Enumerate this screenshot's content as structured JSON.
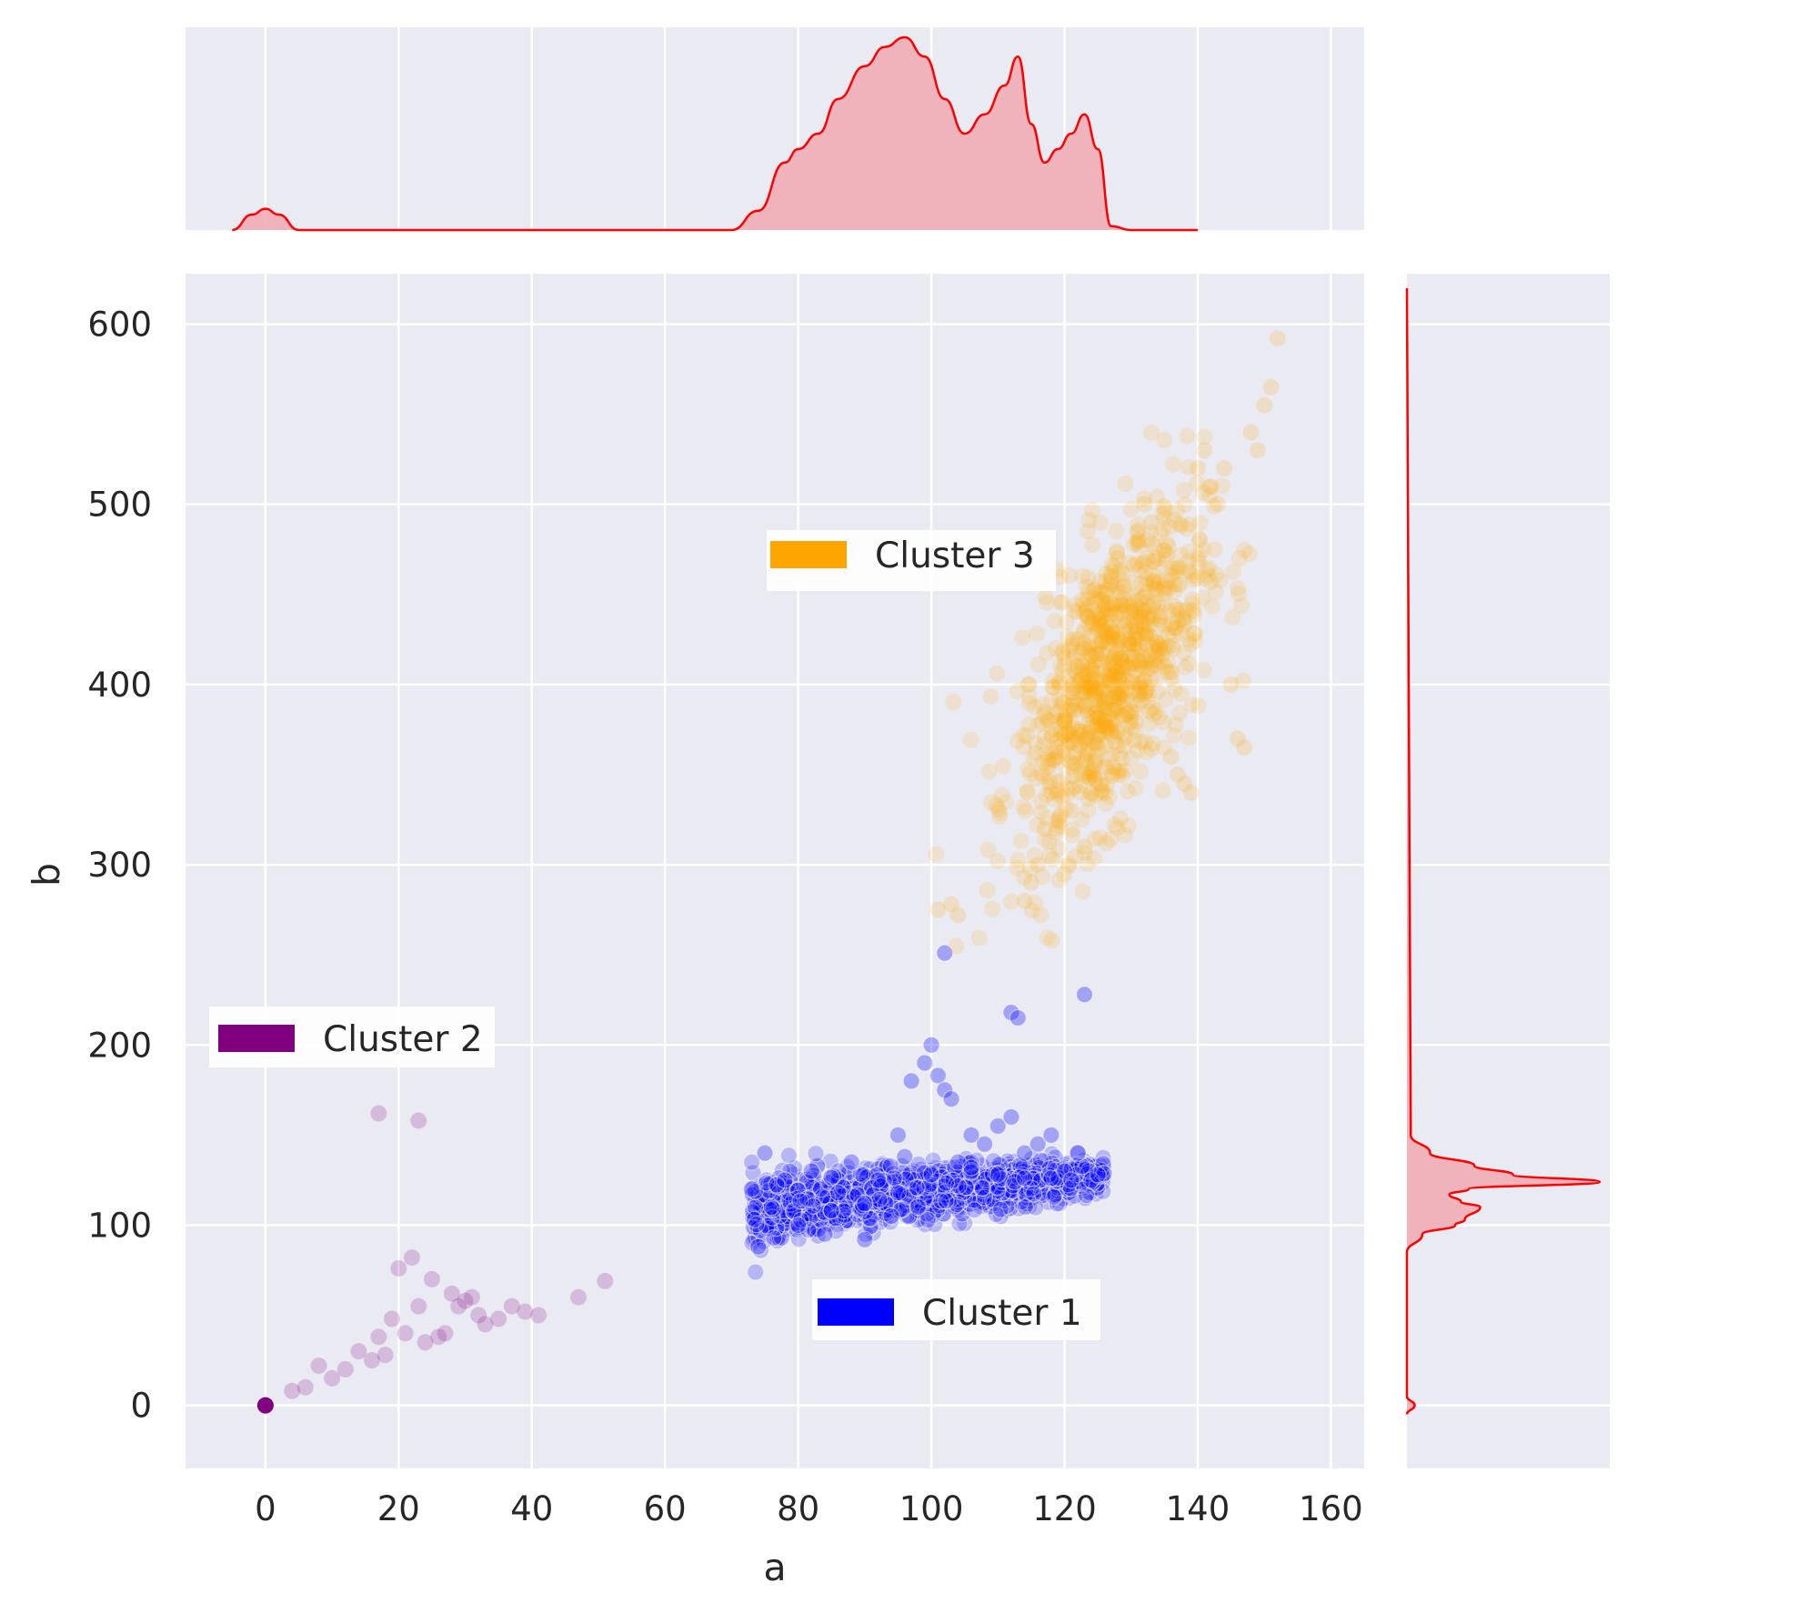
{
  "chart_data": {
    "type": "scatter",
    "title": "",
    "xlabel": "a",
    "ylabel": "b",
    "xlim": [
      -12,
      165
    ],
    "ylim": [
      -35,
      628
    ],
    "x_ticks": [
      0,
      20,
      40,
      60,
      80,
      100,
      120,
      140,
      160
    ],
    "y_ticks": [
      0,
      100,
      200,
      300,
      400,
      500,
      600
    ],
    "grid": true,
    "colors": {
      "background": "#eaeaf2",
      "grid": "#ffffff",
      "kde_line": "#ff0000",
      "kde_fill": "#f0b0b8"
    },
    "series": [
      {
        "name": "Cluster 1",
        "color": "#0000ff",
        "cluster_center": [
          100,
          115
        ],
        "points": [
          [
            73,
            120
          ],
          [
            74,
            88
          ],
          [
            75,
            140
          ],
          [
            76,
            110
          ],
          [
            78,
            125
          ],
          [
            80,
            100
          ],
          [
            82,
            130
          ],
          [
            84,
            95
          ],
          [
            86,
            118
          ],
          [
            88,
            135
          ],
          [
            90,
            92
          ],
          [
            92,
            125
          ],
          [
            94,
            105
          ],
          [
            96,
            138
          ],
          [
            98,
            110
          ],
          [
            100,
            128
          ],
          [
            101,
            183
          ],
          [
            102,
            175
          ],
          [
            103,
            170
          ],
          [
            104,
            135
          ],
          [
            106,
            150
          ],
          [
            108,
            145
          ],
          [
            110,
            155
          ],
          [
            112,
            160
          ],
          [
            114,
            140
          ],
          [
            116,
            145
          ],
          [
            118,
            150
          ],
          [
            120,
            130
          ],
          [
            122,
            140
          ],
          [
            124,
            125
          ],
          [
            125,
            128
          ],
          [
            100,
            200
          ],
          [
            102,
            251
          ],
          [
            112,
            218
          ],
          [
            113,
            215
          ],
          [
            123,
            228
          ],
          [
            97,
            180
          ],
          [
            99,
            190
          ],
          [
            95,
            150
          ],
          [
            106,
            132
          ],
          [
            110,
            128
          ],
          [
            114,
            126
          ],
          [
            118,
            126
          ],
          [
            121,
            125
          ],
          [
            85,
            108
          ],
          [
            90,
            112
          ],
          [
            95,
            118
          ]
        ]
      },
      {
        "name": "Cluster 2",
        "color": "#800080",
        "cluster_center": [
          25,
          40
        ],
        "points": [
          [
            0,
            0
          ],
          [
            4,
            8
          ],
          [
            6,
            10
          ],
          [
            8,
            22
          ],
          [
            10,
            15
          ],
          [
            12,
            20
          ],
          [
            14,
            30
          ],
          [
            16,
            25
          ],
          [
            17,
            38
          ],
          [
            17,
            162
          ],
          [
            18,
            28
          ],
          [
            19,
            48
          ],
          [
            20,
            76
          ],
          [
            21,
            40
          ],
          [
            22,
            82
          ],
          [
            23,
            55
          ],
          [
            23,
            158
          ],
          [
            24,
            35
          ],
          [
            25,
            70
          ],
          [
            26,
            38
          ],
          [
            27,
            40
          ],
          [
            28,
            62
          ],
          [
            29,
            55
          ],
          [
            30,
            58
          ],
          [
            31,
            60
          ],
          [
            32,
            50
          ],
          [
            33,
            45
          ],
          [
            35,
            48
          ],
          [
            37,
            55
          ],
          [
            39,
            52
          ],
          [
            41,
            50
          ],
          [
            47,
            60
          ],
          [
            51,
            69
          ]
        ]
      },
      {
        "name": "Cluster 3",
        "color": "#ffa500",
        "cluster_center": [
          127,
          410
        ],
        "points": [
          [
            101,
            275
          ],
          [
            103,
            278
          ],
          [
            104,
            272
          ],
          [
            114,
            280
          ],
          [
            115,
            290
          ],
          [
            116,
            300
          ],
          [
            117,
            320
          ],
          [
            118,
            340
          ],
          [
            119,
            360
          ],
          [
            120,
            380
          ],
          [
            121,
            395
          ],
          [
            122,
            410
          ],
          [
            123,
            420
          ],
          [
            124,
            400
          ],
          [
            125,
            430
          ],
          [
            126,
            445
          ],
          [
            127,
            460
          ],
          [
            128,
            470
          ],
          [
            129,
            455
          ],
          [
            130,
            440
          ],
          [
            131,
            480
          ],
          [
            132,
            500
          ],
          [
            133,
            490
          ],
          [
            134,
            470
          ],
          [
            135,
            420
          ],
          [
            136,
            360
          ],
          [
            137,
            350
          ],
          [
            138,
            345
          ],
          [
            139,
            340
          ],
          [
            140,
            520
          ],
          [
            141,
            530
          ],
          [
            142,
            510
          ],
          [
            143,
            500
          ],
          [
            144,
            520
          ],
          [
            145,
            400
          ],
          [
            146,
            370
          ],
          [
            147,
            365
          ],
          [
            148,
            540
          ],
          [
            149,
            530
          ],
          [
            150,
            555
          ],
          [
            151,
            565
          ],
          [
            152,
            592
          ],
          [
            123,
            310
          ],
          [
            121,
            330
          ],
          [
            119,
            325
          ],
          [
            130,
            385
          ],
          [
            128,
            395
          ],
          [
            126,
            375
          ]
        ]
      }
    ],
    "marginal_x_kde": {
      "x": [
        -5,
        -2,
        0,
        2,
        5,
        70,
        74,
        78,
        80,
        83,
        86,
        90,
        93,
        96,
        99,
        102,
        105,
        108,
        111,
        113,
        115,
        117,
        119,
        121,
        123,
        125,
        127,
        130,
        140
      ],
      "density": [
        0,
        0.08,
        0.11,
        0.08,
        0,
        0,
        0.1,
        0.35,
        0.42,
        0.5,
        0.68,
        0.85,
        0.95,
        1.0,
        0.9,
        0.68,
        0.5,
        0.6,
        0.75,
        0.9,
        0.55,
        0.35,
        0.42,
        0.5,
        0.6,
        0.42,
        0.02,
        0,
        0
      ]
    },
    "marginal_y_kde": {
      "y": [
        -5,
        0,
        5,
        60,
        85,
        95,
        100,
        103,
        110,
        113,
        117,
        120,
        124,
        128,
        133,
        140,
        150,
        620
      ],
      "density": [
        0,
        0.04,
        0,
        0,
        0,
        0.08,
        0.25,
        0.3,
        0.38,
        0.28,
        0.22,
        0.32,
        1.0,
        0.55,
        0.35,
        0.12,
        0.02,
        0
      ]
    },
    "legends": [
      {
        "label": "Cluster 3",
        "placement": "center"
      },
      {
        "label": "Cluster 2",
        "placement": "lower-left"
      },
      {
        "label": "Cluster 1",
        "placement": "bottom-center"
      }
    ]
  }
}
